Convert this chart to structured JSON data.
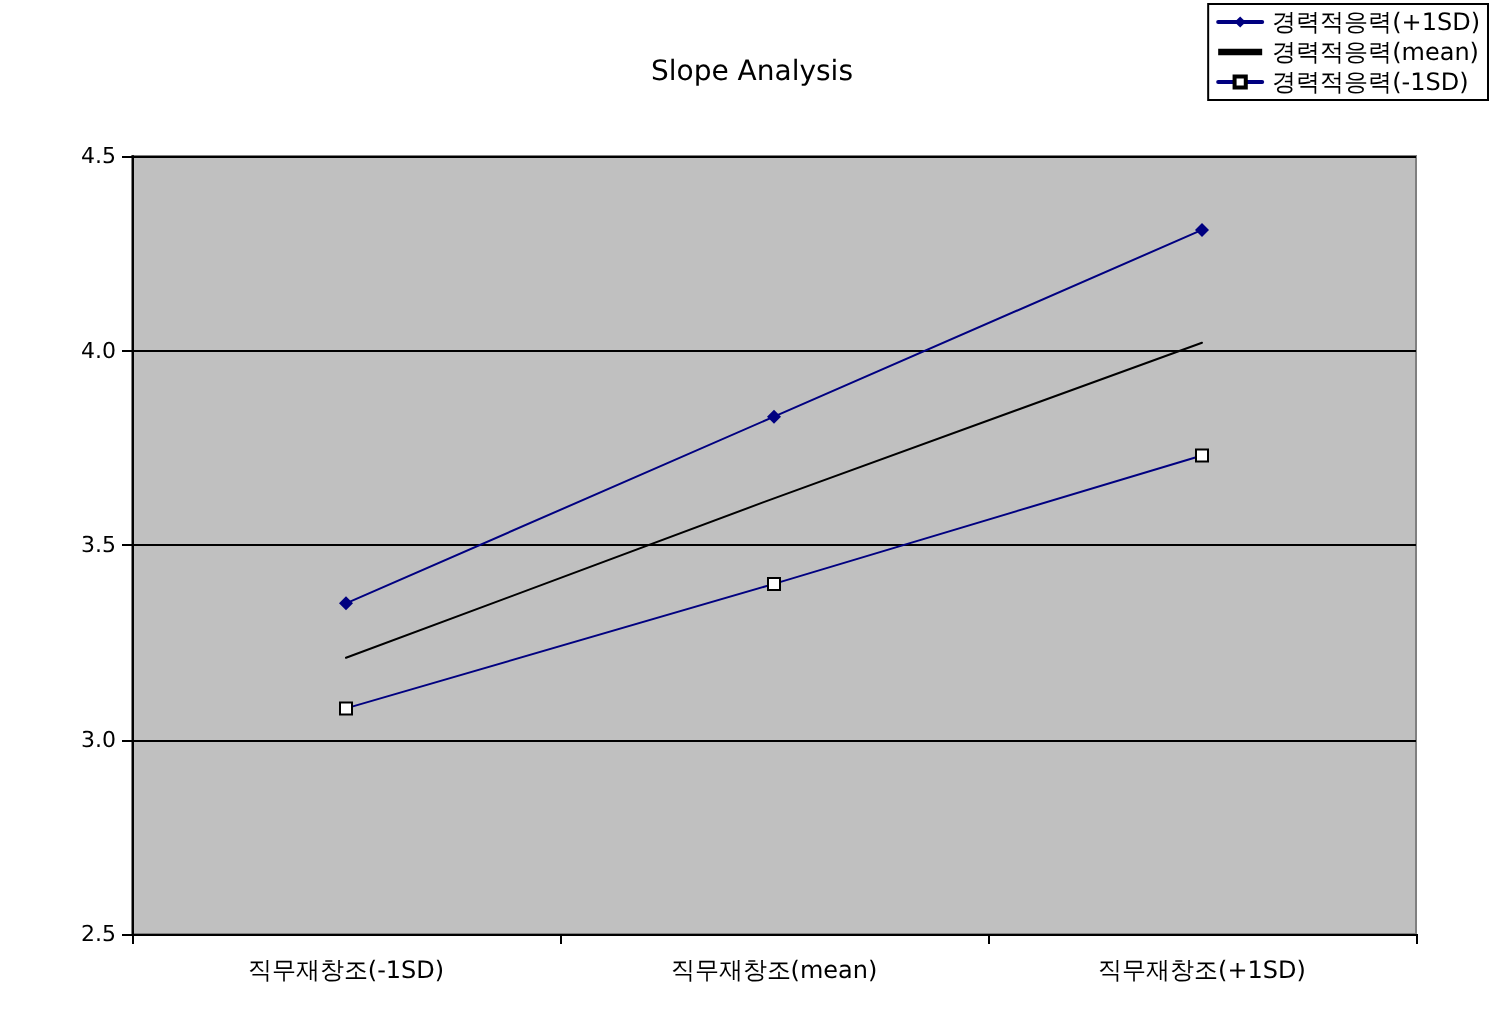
{
  "chart_data": {
    "type": "line",
    "title": "Slope Analysis",
    "categories": [
      "직무재창조(-1SD)",
      "직무재창조(mean)",
      "직무재창조(+1SD)"
    ],
    "series": [
      {
        "name": "경력적응력(+1SD)",
        "color": "#000080",
        "values": [
          3.35,
          3.83,
          4.31
        ],
        "marker": "diamond"
      },
      {
        "name": "경력적응력(mean)",
        "color": "#000000",
        "values": [
          3.21,
          3.62,
          4.02
        ],
        "marker": "none"
      },
      {
        "name": "경력적응력(-1SD)",
        "color": "#000080",
        "values": [
          3.08,
          3.4,
          3.73
        ],
        "marker": "square"
      }
    ],
    "ylim": [
      2.5,
      4.5
    ],
    "yticks": [
      2.5,
      {
        "value": 3,
        "label": "3.0"
      },
      3.5,
      {
        "value": 4,
        "label": "4.0"
      },
      4.5
    ],
    "grid": "y",
    "legend": "top right",
    "line_style": "solid"
  }
}
